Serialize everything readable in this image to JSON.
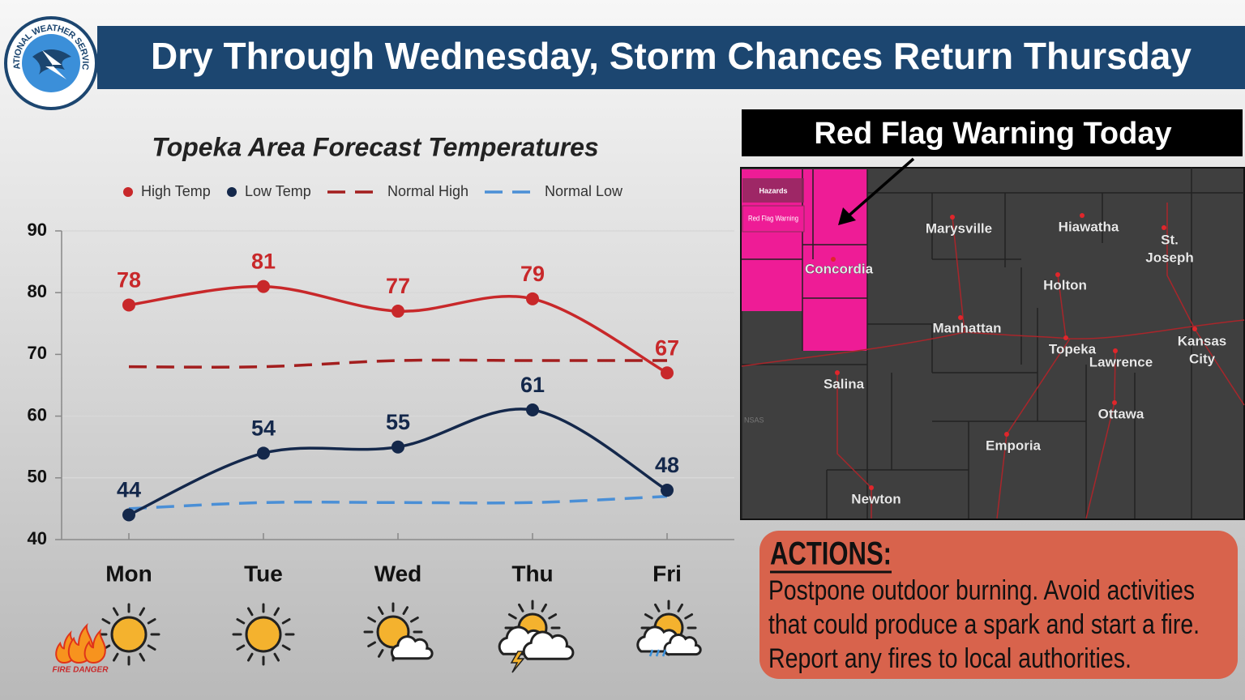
{
  "header": {
    "title": "Dry Through Wednesday, Storm Chances Return Thursday",
    "logo_text": "NATIONAL WEATHER SERVICE"
  },
  "chart_data": {
    "type": "line",
    "title": "Topeka Area Forecast Temperatures",
    "categories": [
      "Mon",
      "Tue",
      "Wed",
      "Thu",
      "Fri"
    ],
    "series": [
      {
        "name": "High Temp",
        "color": "#c8282a",
        "style": "solid",
        "markers": true,
        "labels": true,
        "values": [
          78,
          81,
          77,
          79,
          67
        ]
      },
      {
        "name": "Low Temp",
        "color": "#14284b",
        "style": "solid",
        "markers": true,
        "labels": true,
        "values": [
          44,
          54,
          55,
          61,
          48
        ]
      },
      {
        "name": "Normal High",
        "color": "#a31e1e",
        "style": "dashed",
        "markers": false,
        "labels": false,
        "values": [
          68,
          68,
          69,
          69,
          69
        ]
      },
      {
        "name": "Normal Low",
        "color": "#4a8fd6",
        "style": "dashed",
        "markers": false,
        "labels": false,
        "values": [
          45,
          46,
          46,
          46,
          47
        ]
      }
    ],
    "ylim": [
      40,
      90
    ],
    "yticks": [
      40,
      50,
      60,
      70,
      80,
      90
    ],
    "grid": true,
    "smooth": true
  },
  "icons": {
    "fire_label": "FIRE DANGER"
  },
  "map": {
    "title": "Red Flag Warning Today",
    "legend_title": "Hazards",
    "legend_item": "Red Flag Warning",
    "state_fragment": "NSAS",
    "cities": [
      {
        "lines": [
          "Marysville"
        ]
      },
      {
        "lines": [
          "Hiawatha"
        ]
      },
      {
        "lines": [
          "St.",
          "Joseph"
        ]
      },
      {
        "lines": [
          "Concordia"
        ]
      },
      {
        "lines": [
          "Holton"
        ]
      },
      {
        "lines": [
          "Manhattan"
        ]
      },
      {
        "lines": [
          "Topeka"
        ]
      },
      {
        "lines": [
          "Lawrence"
        ]
      },
      {
        "lines": [
          "Kansas",
          "City"
        ]
      },
      {
        "lines": [
          "Salina"
        ]
      },
      {
        "lines": [
          "Ottawa"
        ]
      },
      {
        "lines": [
          "Emporia"
        ]
      },
      {
        "lines": [
          "Newton"
        ]
      }
    ]
  },
  "actions": {
    "heading": "ACTIONS:",
    "lines": [
      "Postpone outdoor burning. Avoid activities",
      "that could produce a spark and start a fire.",
      "Report any fires to local authorities."
    ]
  }
}
